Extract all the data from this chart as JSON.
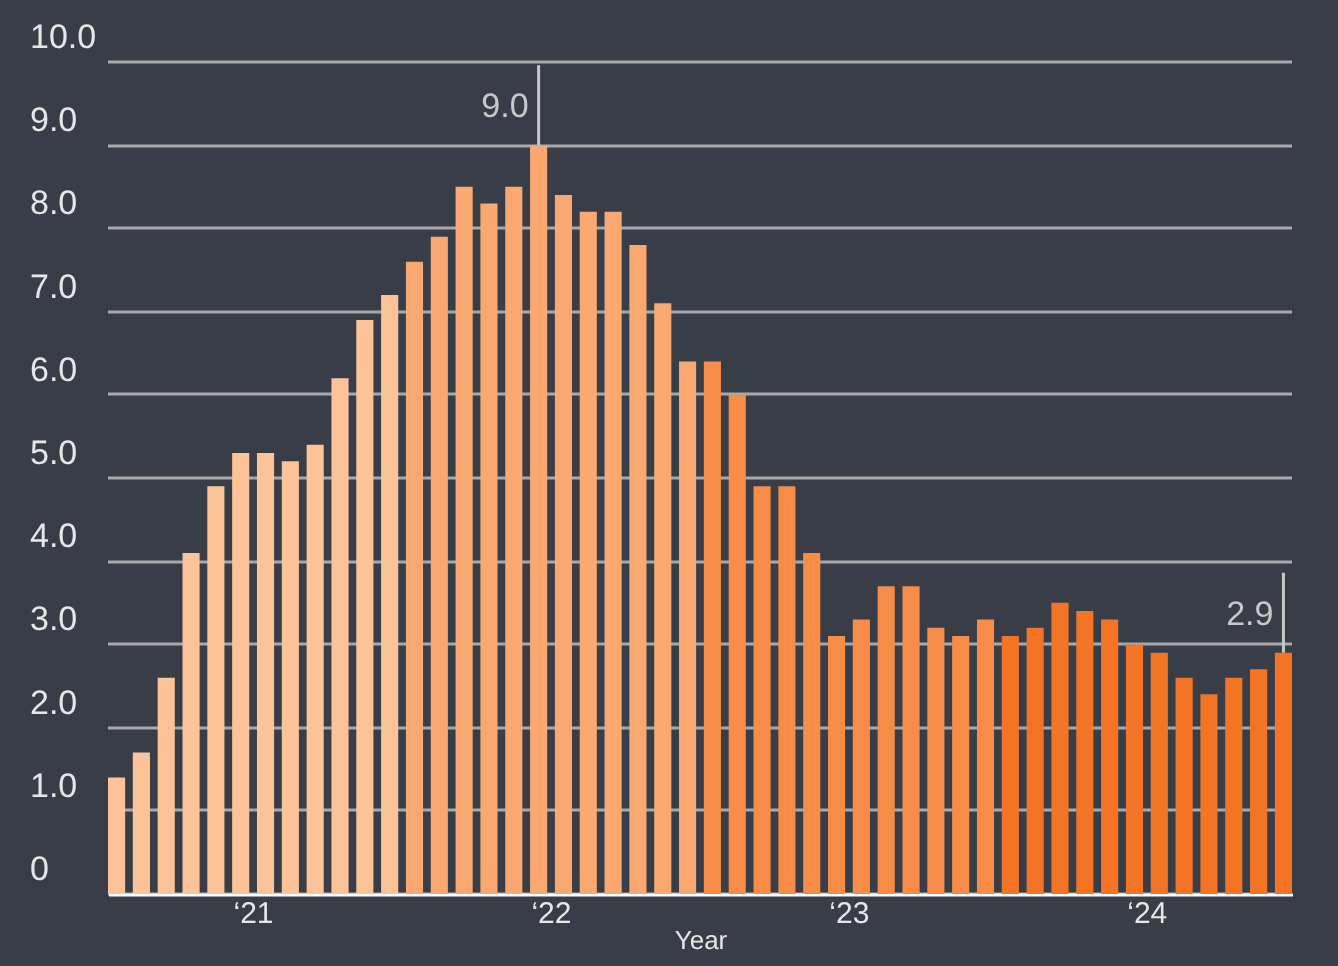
{
  "chart_data": {
    "type": "bar",
    "xlabel": "Year",
    "categories": [
      null,
      null,
      null,
      null,
      null,
      null,
      "‘21",
      null,
      null,
      null,
      null,
      null,
      null,
      null,
      null,
      null,
      null,
      null,
      "‘22",
      null,
      null,
      null,
      null,
      null,
      null,
      null,
      null,
      null,
      null,
      null,
      "‘23",
      null,
      null,
      null,
      null,
      null,
      null,
      null,
      null,
      null,
      null,
      null,
      "‘24",
      null,
      null,
      null,
      null,
      null
    ],
    "values": [
      1.4,
      1.7,
      2.6,
      4.1,
      4.9,
      5.3,
      5.3,
      5.2,
      5.4,
      6.2,
      6.9,
      7.2,
      7.6,
      7.9,
      8.5,
      8.3,
      8.5,
      9.0,
      8.4,
      8.2,
      8.2,
      7.8,
      7.1,
      6.4,
      6.4,
      6.0,
      4.9,
      4.9,
      4.1,
      3.1,
      3.3,
      3.7,
      3.7,
      3.2,
      3.1,
      3.3,
      3.1,
      3.2,
      3.5,
      3.4,
      3.3,
      3.0,
      2.9,
      2.6,
      2.4,
      2.6,
      2.7,
      2.9
    ],
    "value_labels": [
      null,
      null,
      null,
      null,
      null,
      null,
      null,
      null,
      null,
      null,
      null,
      null,
      null,
      null,
      null,
      null,
      null,
      "9.0",
      null,
      null,
      null,
      null,
      null,
      null,
      null,
      null,
      null,
      null,
      null,
      null,
      null,
      null,
      null,
      null,
      null,
      null,
      null,
      null,
      null,
      null,
      null,
      null,
      null,
      null,
      null,
      null,
      null,
      "2.9"
    ],
    "colors": [
      "#fbc397",
      "#fbc397",
      "#fbc397",
      "#fbc397",
      "#fbc397",
      "#fbc397",
      "#fbc397",
      "#fbc397",
      "#fbc397",
      "#fbc397",
      "#fbc397",
      "#fbc397",
      "#f8a870",
      "#f8a870",
      "#f8a870",
      "#f8a870",
      "#f8a870",
      "#f8a870",
      "#f8a870",
      "#f8a870",
      "#f8a870",
      "#f8a870",
      "#f8a870",
      "#f8a870",
      "#f68c47",
      "#f68c47",
      "#f68c47",
      "#f68c47",
      "#f68c47",
      "#f68c47",
      "#f68c47",
      "#f68c47",
      "#f68c47",
      "#f68c47",
      "#f68c47",
      "#f68c47",
      "#f47426",
      "#f47426",
      "#f47426",
      "#f47426",
      "#f47426",
      "#f47426",
      "#f47426",
      "#f47426",
      "#f47426",
      "#f47426",
      "#f47426",
      "#f47426"
    ],
    "ylim": [
      0,
      10
    ],
    "yticks": [
      0,
      {
        "value": 1,
        "label": "1.0"
      },
      {
        "value": 2,
        "label": "2.0"
      },
      {
        "value": 3,
        "label": "3.0"
      },
      {
        "value": 4,
        "label": "4.0"
      },
      {
        "value": 5,
        "label": "5.0"
      },
      {
        "value": 6,
        "label": "6.0"
      },
      {
        "value": 7,
        "label": "7.0"
      },
      {
        "value": 8,
        "label": "8.0"
      },
      {
        "value": 9,
        "label": "9.0"
      },
      {
        "value": 10,
        "label": "10.0"
      }
    ],
    "grid": "y"
  }
}
